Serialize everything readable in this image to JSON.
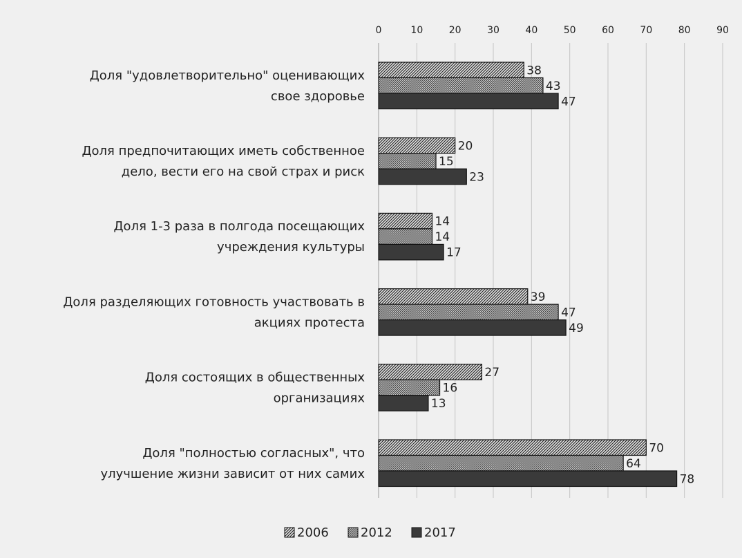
{
  "chart_data": {
    "type": "bar",
    "orientation": "horizontal",
    "title": "",
    "xlabel": "",
    "ylabel": "",
    "xlim": [
      0,
      90
    ],
    "xticks": [
      0,
      10,
      20,
      30,
      40,
      50,
      60,
      70,
      80,
      90
    ],
    "grid": true,
    "legend_position": "bottom",
    "categories": [
      [
        "Доля \"удовлетворительно\" оценивающих",
        "свое здоровье"
      ],
      [
        "Доля предпочитающих иметь собственное",
        "дело, вести его на свой страх и риск"
      ],
      [
        "Доля 1-3 раза в полгода посещающих",
        "учреждения культуры"
      ],
      [
        "Доля разделяющих готовность участвовать в",
        "акциях протеста"
      ],
      [
        "Доля состоящих в общественных",
        "организациях"
      ],
      [
        "Доля \"полностью согласных\",  что",
        "улучшение жизни зависит от них самих"
      ]
    ],
    "series": [
      {
        "name": "2006",
        "pattern": "diagonal-hatch",
        "color": "#555555",
        "values": [
          38,
          20,
          14,
          39,
          27,
          70
        ]
      },
      {
        "name": "2012",
        "pattern": "dots",
        "color": "#777777",
        "values": [
          43,
          15,
          14,
          47,
          16,
          64
        ]
      },
      {
        "name": "2017",
        "pattern": "solid",
        "color": "#3a3a3a",
        "values": [
          47,
          23,
          17,
          49,
          13,
          78
        ]
      }
    ]
  }
}
